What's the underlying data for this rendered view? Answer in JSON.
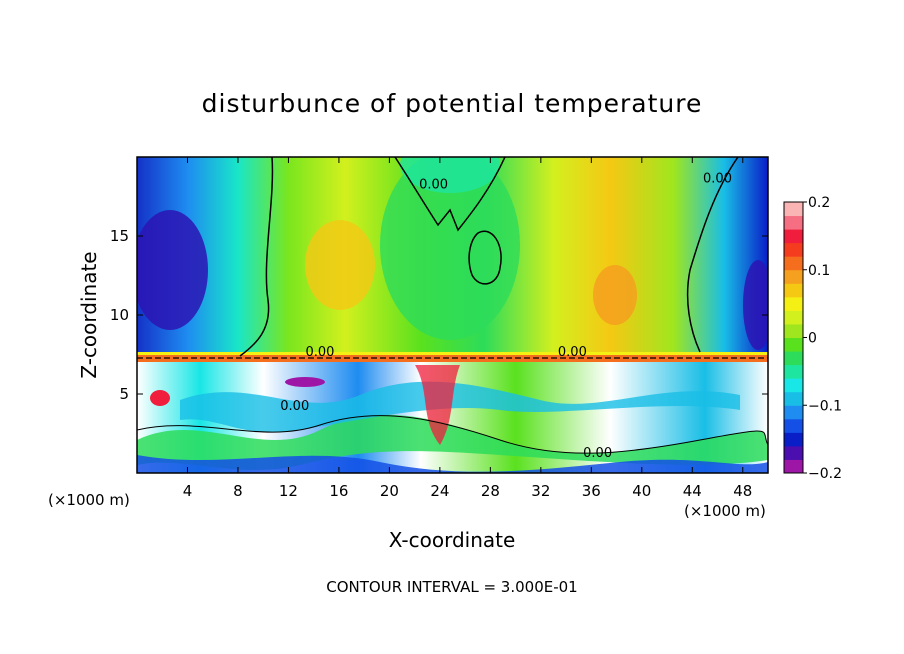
{
  "chart_data": {
    "type": "heatmap",
    "title": "disturbunce of potential temperature",
    "xlabel": "X-coordinate",
    "ylabel": "Z-coordinate",
    "x_unit_left": "(×1000 m)",
    "x_unit_right": "(×1000 m)",
    "xlim": [
      0,
      50
    ],
    "ylim": [
      0,
      20
    ],
    "x_ticks": [
      4,
      8,
      12,
      16,
      20,
      24,
      28,
      32,
      36,
      40,
      44,
      48
    ],
    "x_tick_labels": [
      "4",
      "8",
      "12",
      "16",
      "20",
      "24",
      "28",
      "32",
      "36",
      "40",
      "44",
      "48"
    ],
    "y_ticks": [
      5,
      10,
      15
    ],
    "y_tick_labels": [
      "5",
      "10",
      "15"
    ],
    "colorbar": {
      "min": -0.2,
      "max": 0.2,
      "ticks": [
        0.2,
        0.1,
        0,
        -0.1,
        -0.2
      ],
      "tick_labels": [
        "0.2",
        "0.1",
        "0",
        "−0.1",
        "−0.2"
      ],
      "colors": [
        "#9e16a6",
        "#4b0fb0",
        "#0a1ec8",
        "#1450e6",
        "#1e8cf0",
        "#19bee6",
        "#19e6e6",
        "#1ee6a0",
        "#2ddc5a",
        "#5ae11e",
        "#a0e61e",
        "#d2f01e",
        "#f5f014",
        "#f5c814",
        "#f5a01e",
        "#f56e1e",
        "#f53c1e",
        "#f01e3c",
        "#f56e82",
        "#fab4b4"
      ]
    },
    "contour_labels": [
      {
        "text": "0.00",
        "x": 23.5,
        "y": 18.0
      },
      {
        "text": "0.00",
        "x": 14.5,
        "y": 7.4
      },
      {
        "text": "0.00",
        "x": 34.5,
        "y": 7.4
      },
      {
        "text": "0.00",
        "x": 12.5,
        "y": 4.0
      },
      {
        "text": "0.00",
        "x": 36.5,
        "y": 1.0
      },
      {
        "text": "0.00",
        "x": 46.0,
        "y": 18.4
      }
    ],
    "contour_interval_text": "CONTOUR INTERVAL = 3.000E-01"
  }
}
